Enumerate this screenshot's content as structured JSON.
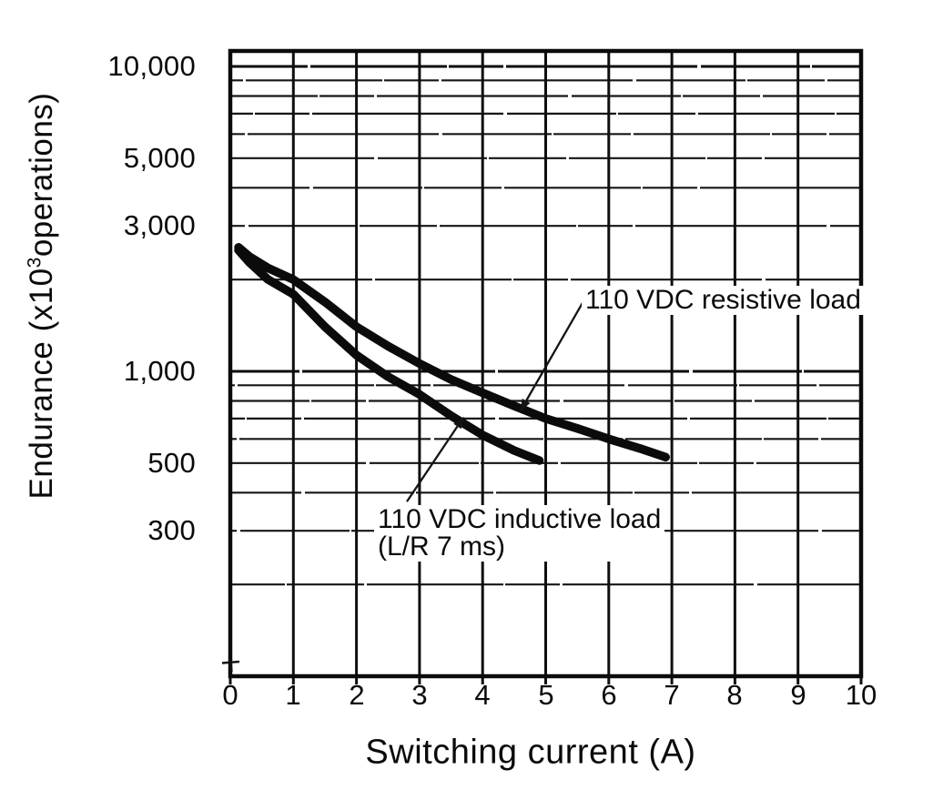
{
  "page": {
    "background": "#ffffff",
    "ink_color": "#0b0b0b"
  },
  "axis": {
    "x_title": "Switching current (A)",
    "y_prefix": "Endurance (x10",
    "y_sup": "3",
    "y_suffix": "operations)"
  },
  "chart_data": {
    "type": "line",
    "title": "",
    "xlabel": "Switching current (A)",
    "ylabel": "Endurance (x10^3 operations)",
    "grid": true,
    "x_axis": {
      "min": 0,
      "max": 10,
      "ticks": [
        0,
        1,
        2,
        3,
        4,
        5,
        6,
        7,
        8,
        9,
        10
      ]
    },
    "y_axis": {
      "scale": "log",
      "min": 100,
      "max": 11200,
      "unit": "x10^3 operations",
      "tick_labels": [
        {
          "label": "10,000",
          "value": 10000
        },
        {
          "label": "5,000",
          "value": 5000
        },
        {
          "label": "3,000",
          "value": 3000
        },
        {
          "label": "1,000",
          "value": 1000
        },
        {
          "label": "500",
          "value": 500
        },
        {
          "label": "300",
          "value": 300
        }
      ],
      "grid_values": [
        10000,
        9000,
        8000,
        7000,
        6000,
        5000,
        4000,
        3000,
        2000,
        1000,
        900,
        800,
        700,
        600,
        500,
        400,
        300,
        200
      ]
    },
    "series": [
      {
        "name": "110 VDC resistive load",
        "x": [
          0.13,
          0.3,
          0.6,
          1.0,
          1.5,
          2.0,
          2.5,
          3.0,
          3.5,
          4.0,
          4.5,
          5.0,
          5.5,
          6.0,
          6.5,
          6.9
        ],
        "y": [
          2550,
          2380,
          2180,
          2000,
          1690,
          1400,
          1210,
          1060,
          940,
          850,
          770,
          700,
          650,
          600,
          558,
          523
        ]
      },
      {
        "name": "110 VDC inductive load (L/R 7 ms)",
        "x": [
          0.13,
          0.3,
          0.6,
          1.0,
          1.5,
          2.0,
          2.5,
          3.0,
          3.5,
          4.0,
          4.5,
          4.9
        ],
        "y": [
          2500,
          2280,
          2000,
          1790,
          1400,
          1130,
          960,
          840,
          715,
          618,
          550,
          510
        ]
      }
    ],
    "annotations": [
      {
        "id": "resistive",
        "lines": [
          "110 VDC resistive load"
        ],
        "text_pos": {
          "x": 5.63,
          "y": 1900
        },
        "arrow": {
          "from": {
            "x": 5.6,
            "y": 1700
          },
          "to": {
            "x": 4.69,
            "y": 800
          }
        }
      },
      {
        "id": "inductive",
        "lines": [
          "110 VDC inductive load",
          "(L/R 7 ms)"
        ],
        "text_pos": {
          "x": 2.34,
          "y": 362
        },
        "arrow": {
          "from": {
            "x": 2.8,
            "y": 374
          },
          "to": {
            "x": 3.6,
            "y": 660
          }
        }
      }
    ]
  }
}
